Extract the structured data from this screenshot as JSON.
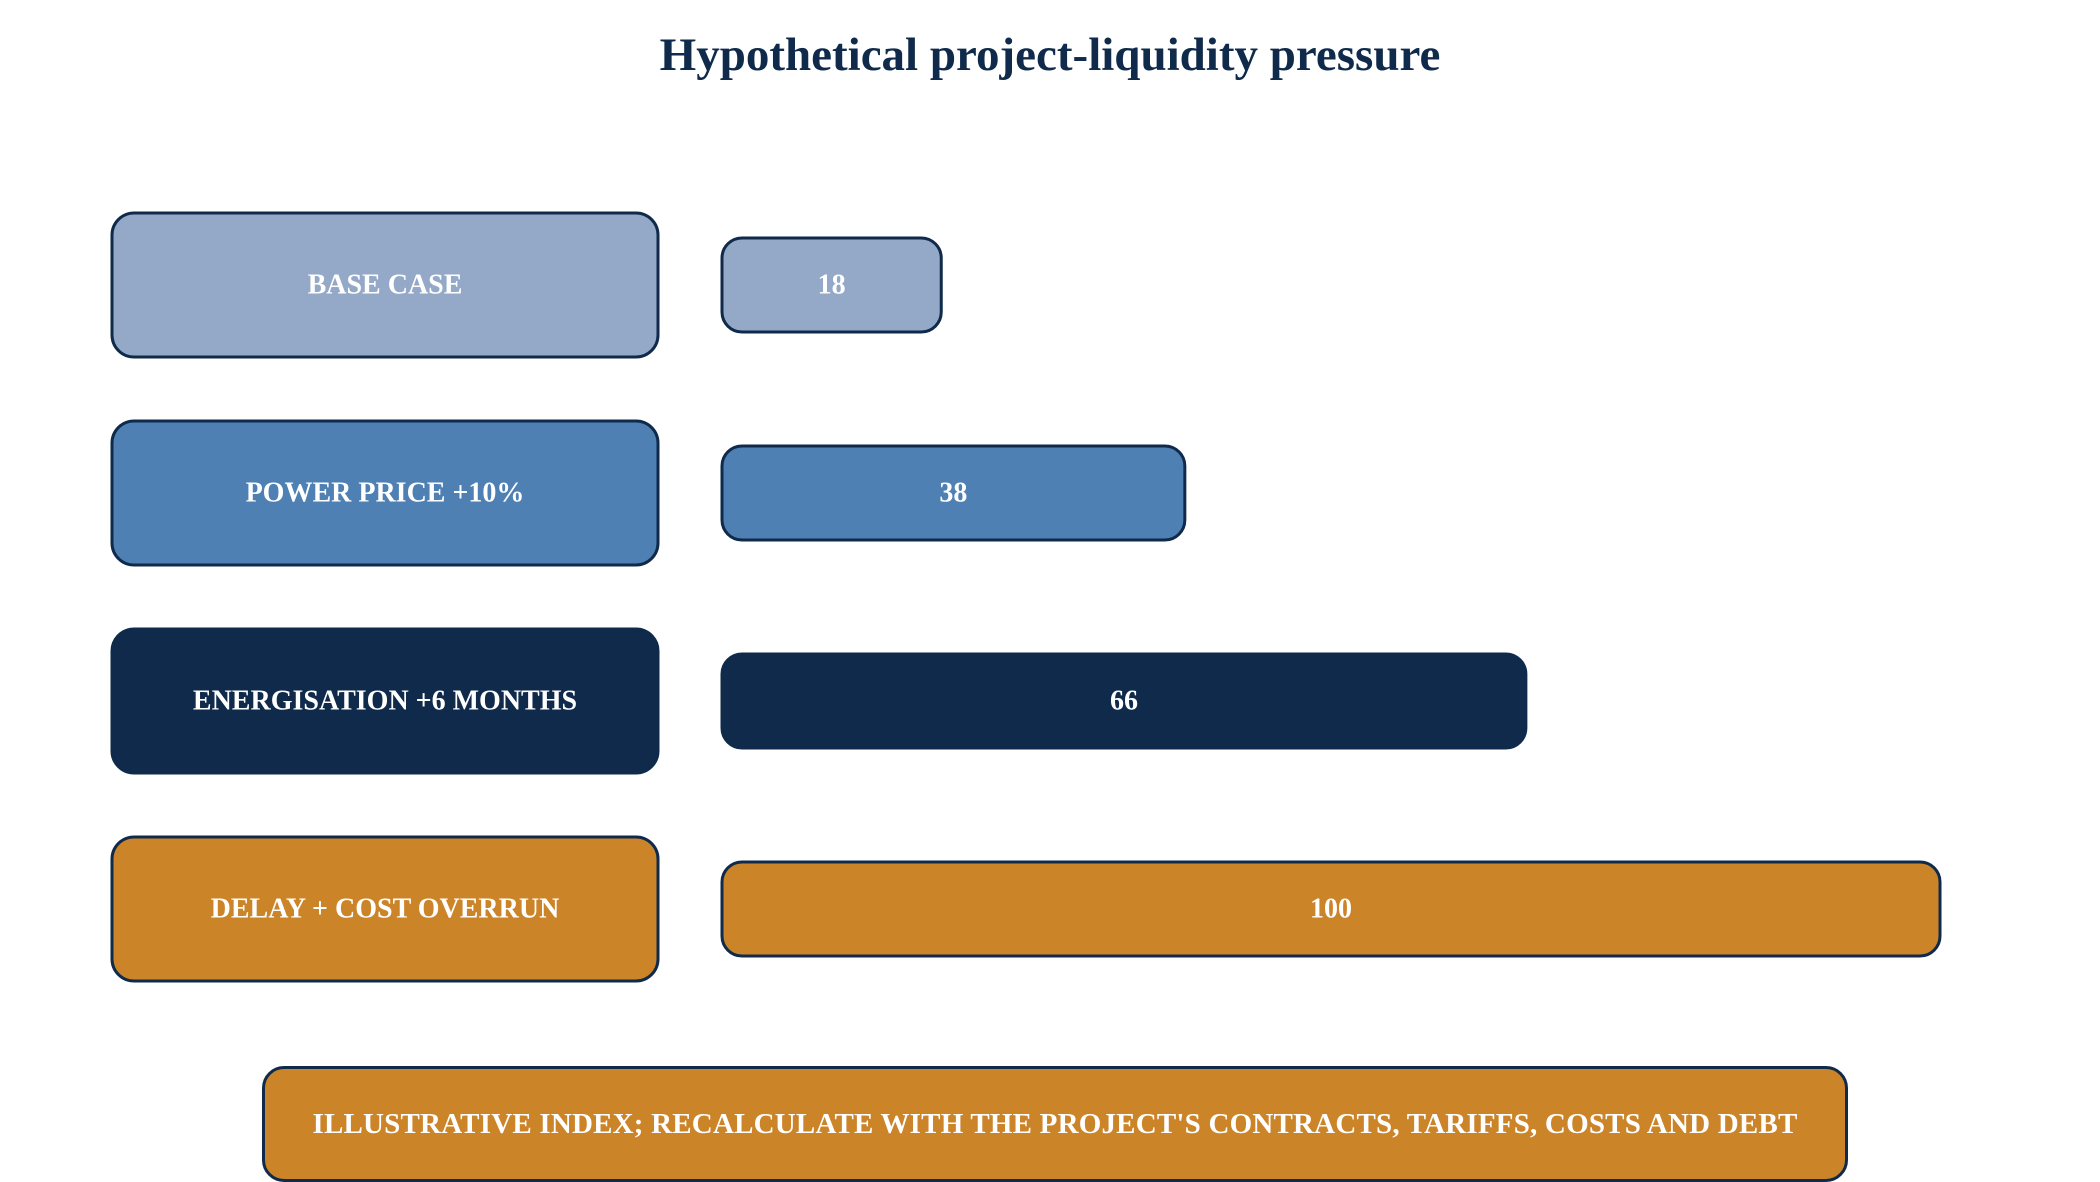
{
  "title": "Hypothetical project-liquidity pressure",
  "note": "ILLUSTRATIVE INDEX; RECALCULATE WITH THE PROJECT'S CONTRACTS, TARIFFS, COSTS AND DEBT",
  "colors": {
    "title": "#0f2a4a",
    "border": "#0f2a4a",
    "text_on_bars": "#ffffff"
  },
  "chart_data": {
    "type": "bar",
    "orientation": "horizontal",
    "title": "Hypothetical project-liquidity pressure",
    "xlim": [
      0,
      100
    ],
    "grid": false,
    "categories": [
      "BASE CASE",
      "POWER PRICE +10%",
      "ENERGISATION +6 MONTHS",
      "DELAY + COST OVERRUN"
    ],
    "values": [
      18,
      38,
      66,
      100
    ],
    "bar_colors": [
      "#94a9c7",
      "#4e80b4",
      "#0f2a4a",
      "#cc8429"
    ]
  }
}
